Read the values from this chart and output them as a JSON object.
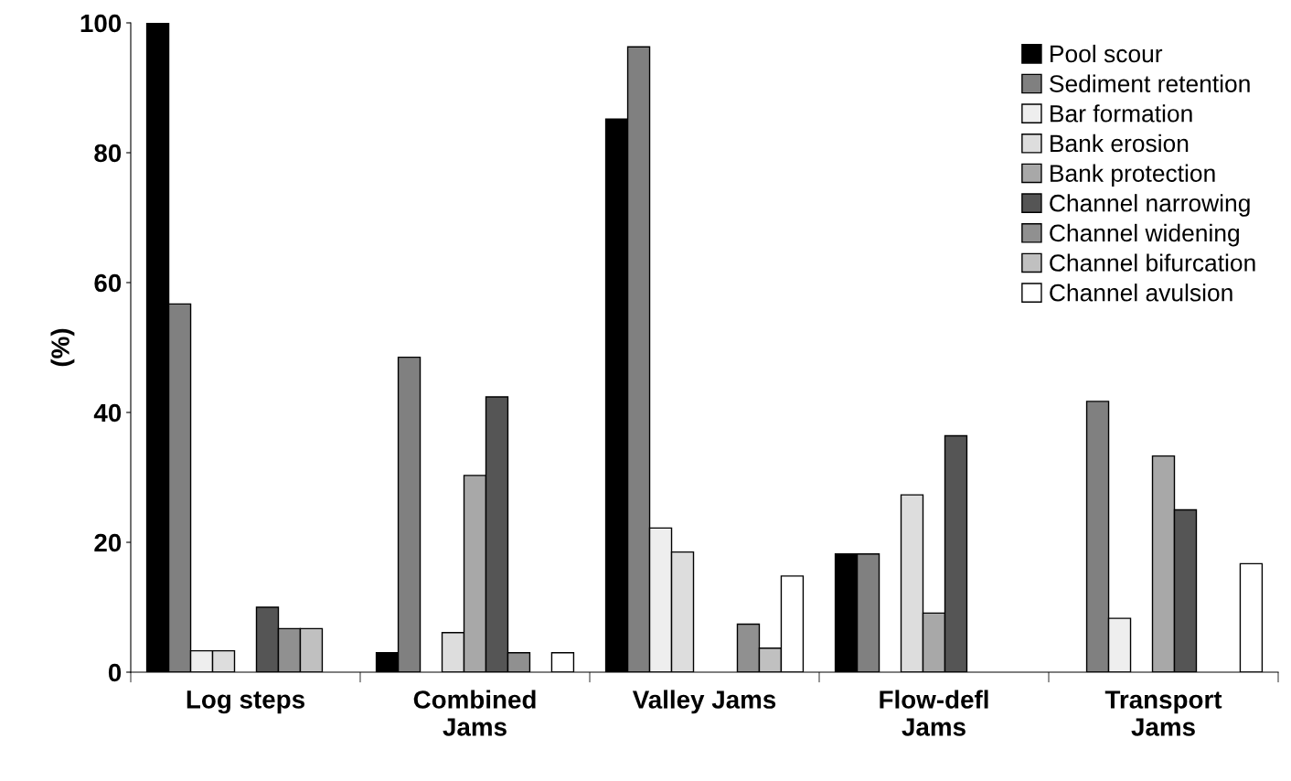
{
  "chart_data": {
    "type": "bar",
    "ylabel": "(%)",
    "categories": [
      "Log steps",
      "Combined\nJams",
      "Valley Jams",
      "Flow-defl\nJams",
      "Transport\nJams"
    ],
    "series": [
      {
        "name": "Pool scour",
        "color": "#000000",
        "values": [
          100,
          3.0,
          85.2,
          18.2,
          0
        ]
      },
      {
        "name": "Sediment retention",
        "color": "#808080",
        "values": [
          56.7,
          48.5,
          96.3,
          18.2,
          41.7
        ]
      },
      {
        "name": "Bar formation",
        "color": "#eeeeee",
        "values": [
          3.3,
          0,
          22.2,
          0,
          8.3
        ]
      },
      {
        "name": "Bank erosion",
        "color": "#dddddd",
        "values": [
          3.3,
          6.1,
          18.5,
          27.3,
          0
        ]
      },
      {
        "name": "Bank protection",
        "color": "#a8a8a8",
        "values": [
          0,
          30.3,
          0,
          9.1,
          33.3
        ]
      },
      {
        "name": "Channel narrowing",
        "color": "#555555",
        "values": [
          10.0,
          42.4,
          0,
          36.4,
          25.0
        ]
      },
      {
        "name": "Channel widening",
        "color": "#909090",
        "values": [
          6.7,
          3.0,
          7.4,
          0,
          0
        ]
      },
      {
        "name": "Channel bifurcation",
        "color": "#c0c0c0",
        "values": [
          6.7,
          0,
          3.7,
          0,
          0
        ]
      },
      {
        "name": "Channel avulsion",
        "color": "#ffffff",
        "values": [
          0,
          3.0,
          14.8,
          0,
          16.7
        ]
      }
    ],
    "ylim": [
      0,
      100
    ],
    "yticks": [
      0,
      20,
      40,
      60,
      80,
      100
    ],
    "grid": false,
    "legend": "top right"
  }
}
